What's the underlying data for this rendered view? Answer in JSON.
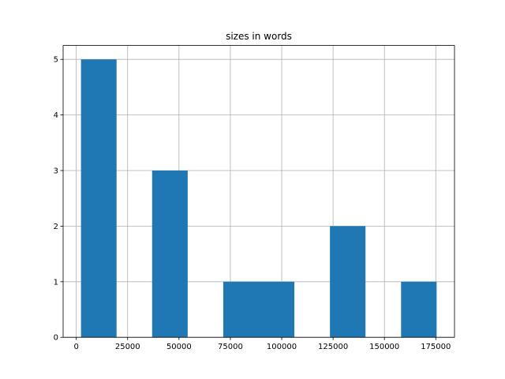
{
  "chart_data": {
    "type": "histogram",
    "title": "sizes in words",
    "bins": [
      2300,
      19610,
      36920,
      54230,
      71540,
      88850,
      106160,
      123470,
      140780,
      158090,
      175400
    ],
    "values": [
      5,
      0,
      3,
      0,
      1,
      1,
      0,
      2,
      0,
      1
    ],
    "color": "#1f77b4",
    "xlim": [
      -6400,
      184100
    ],
    "xticks": [
      0,
      25000,
      50000,
      75000,
      100000,
      125000,
      150000,
      175000
    ],
    "ylim": [
      0,
      5.25
    ],
    "yticks": [
      0,
      1,
      2,
      3,
      4,
      5
    ],
    "grid": true
  }
}
